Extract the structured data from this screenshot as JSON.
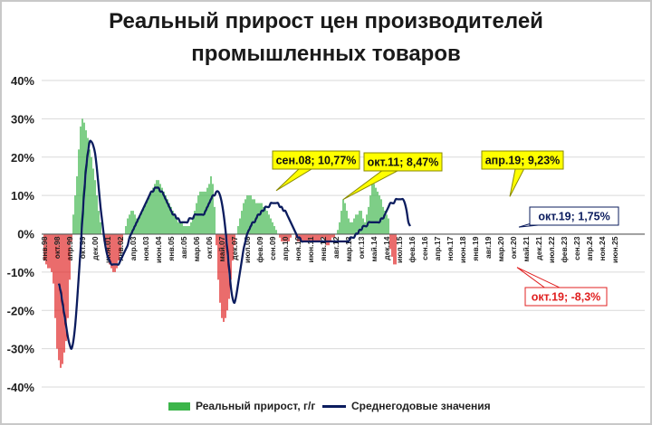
{
  "chart_data": {
    "type": "bar",
    "title_line1": "Реальный прирост цен производителей",
    "title_line2": "промышленных товаров",
    "xlabel": "",
    "ylabel": "",
    "ylim": [
      -40,
      40
    ],
    "y_ticks": [
      "40%",
      "30%",
      "20%",
      "10%",
      "0%",
      "-10%",
      "-20%",
      "-30%",
      "-40%"
    ],
    "grid": true,
    "legend_position": "bottom",
    "colors": {
      "positive_bar": "#3cb54a",
      "negative_bar": "#e02020",
      "line": "#0b1c5e",
      "callout_yellow": "#ffff00",
      "neg_callout": "#e02020"
    },
    "x_labels": [
      "янв.98",
      "окт.98",
      "апр.99",
      "окт.99",
      "дек.00",
      "июн.01",
      "янв.02",
      "апр.03",
      "ноя.03",
      "июн.04",
      "янв.05",
      "авг.05",
      "мар.06",
      "окт.06",
      "май.07",
      "дек.07",
      "июл.08",
      "фев.09",
      "сен.09",
      "апр.10",
      "ноя.10",
      "июн.11",
      "янв.12",
      "авг.12",
      "мар.13",
      "окт.13",
      "май.14",
      "дек.14",
      "июл.15",
      "фев.16",
      "сен.16",
      "апр.17",
      "ноя.17",
      "июн.18",
      "янв.19",
      "авг.19",
      "мар.20",
      "окт.20",
      "май.21",
      "дек.21",
      "июл.22",
      "фев.23",
      "сен.23",
      "апр.24",
      "ноя.24",
      "июн.25"
    ],
    "legend": {
      "bars": "Реальный прирост, г/г",
      "line": "Среднегодовые значения"
    },
    "annotations": [
      {
        "text": "сен.08; 10,77%",
        "style": "yellow"
      },
      {
        "text": "окт.11; 8,47%",
        "style": "yellow"
      },
      {
        "text": "апр.19; 9,23%",
        "style": "yellow"
      },
      {
        "text": "окт.19; 1,75%",
        "style": "navy"
      },
      {
        "text": "окт.19; -8,3%",
        "style": "red"
      }
    ],
    "series": [
      {
        "name": "Реальный прирост, г/г",
        "kind": "bar",
        "start": "1998-01",
        "step": "month",
        "values": [
          -7,
          -8,
          -9,
          -9,
          -10,
          -13,
          -22,
          -30,
          -33,
          -35,
          -34,
          -31,
          -28,
          -22,
          -12,
          -2,
          5,
          10,
          15,
          22,
          28,
          30,
          29,
          27,
          25,
          22,
          20,
          17,
          14,
          10,
          6,
          3,
          0,
          -2,
          -4,
          -6,
          -8,
          -9,
          -10,
          -10,
          -9,
          -7,
          -5,
          -2,
          0,
          2,
          4,
          5,
          6,
          6,
          5,
          4,
          4,
          5,
          6,
          7,
          8,
          9,
          10,
          11,
          12,
          13,
          14,
          14,
          13,
          12,
          11,
          10,
          9,
          8,
          7,
          6,
          5,
          4,
          3,
          3,
          3,
          2,
          2,
          2,
          2,
          3,
          4,
          6,
          8,
          10,
          11,
          11,
          11,
          11,
          12,
          13,
          15,
          13,
          7,
          -3,
          -12,
          -18,
          -22,
          -23,
          -22,
          -20,
          -17,
          -12,
          -7,
          -3,
          0,
          2,
          4,
          6,
          8,
          9,
          10,
          10,
          10,
          9,
          9,
          8,
          8,
          8,
          8,
          7,
          7,
          6,
          5,
          4,
          3,
          2,
          1,
          0,
          -1,
          -2,
          -2,
          -2,
          -2,
          -2,
          -1,
          0,
          0,
          -1,
          -2,
          -2,
          -2,
          -2,
          -2,
          -2,
          -2,
          -2,
          -2,
          -2,
          -2,
          -2,
          -2,
          -1,
          -1,
          -2,
          -3,
          -3,
          -2,
          -1,
          -1,
          0,
          1,
          3,
          6,
          9,
          8,
          6,
          4,
          3,
          3,
          4,
          5,
          5,
          6,
          6,
          4,
          3,
          5,
          7,
          10,
          13,
          13,
          12,
          11,
          10,
          9,
          7,
          6,
          5,
          4,
          -4,
          -6,
          -8,
          -8
        ]
      },
      {
        "name": "Среднегодовые значения",
        "kind": "line",
        "start": "1998-09",
        "step": "month",
        "values": [
          -13,
          -15,
          -18,
          -21,
          -24,
          -27,
          -29,
          -30,
          -28,
          -24,
          -18,
          -11,
          -4,
          4,
          11,
          17,
          21,
          24,
          24,
          23,
          21,
          17,
          12,
          7,
          3,
          -1,
          -4,
          -6,
          -7,
          -8,
          -8,
          -8,
          -8,
          -8,
          -7,
          -6,
          -5,
          -4,
          -3,
          -1,
          0,
          1,
          2,
          3,
          4,
          5,
          6,
          7,
          8,
          9,
          10,
          11,
          11,
          12,
          12,
          12,
          11,
          11,
          10,
          9,
          8,
          7,
          6,
          5,
          5,
          4,
          4,
          3,
          3,
          3,
          3,
          3,
          4,
          4,
          4,
          5,
          5,
          5,
          5,
          5,
          5,
          6,
          7,
          8,
          9,
          10,
          10,
          11,
          11,
          10,
          8,
          5,
          1,
          -4,
          -9,
          -14,
          -17,
          -18,
          -16,
          -13,
          -10,
          -7,
          -4,
          -2,
          0,
          1,
          2,
          3,
          3,
          4,
          5,
          5,
          6,
          6,
          7,
          7,
          7,
          8,
          8,
          8,
          8,
          8,
          7,
          7,
          6,
          6,
          5,
          4,
          3,
          2,
          1,
          0,
          -1,
          -1,
          -2,
          -2,
          -2,
          -2,
          -2,
          -2,
          -2,
          -2,
          -2,
          -2,
          -2,
          -2,
          -2,
          -2,
          -2,
          -2,
          -2,
          -2,
          -2,
          -2,
          -2,
          -2,
          -2,
          -2,
          -2,
          -2,
          -2,
          -1,
          -1,
          -1,
          0,
          0,
          1,
          1,
          2,
          2,
          2,
          3,
          3,
          3,
          3,
          3,
          3,
          3,
          4,
          4,
          5,
          6,
          7,
          8,
          8,
          8,
          9,
          9,
          9,
          9,
          9,
          8,
          6,
          3,
          2
        ]
      }
    ]
  }
}
